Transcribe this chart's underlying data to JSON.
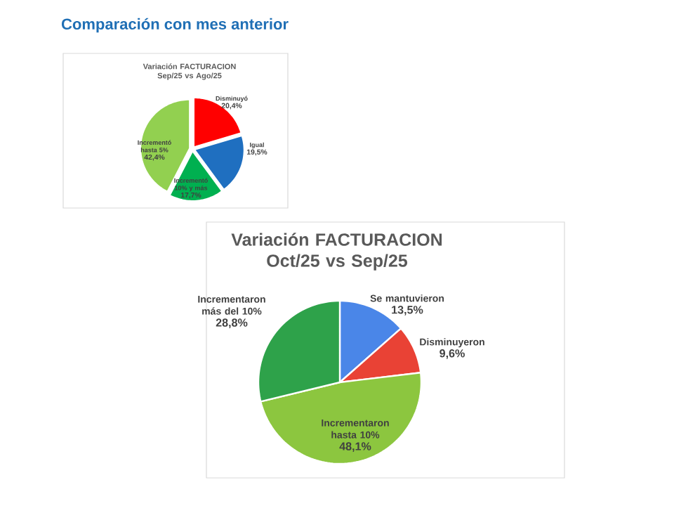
{
  "chart_data": [
    {
      "type": "pie",
      "title": "Comparación con mes anterior",
      "subtitle": "Variación FACTURACION  Sep/25 vs Ago/25",
      "categories": [
        "Disminuyó",
        "Igual",
        "Incrementó 10% y más",
        "Incrementó hasta 5%"
      ],
      "values": [
        20.4,
        19.5,
        17.7,
        42.4
      ],
      "value_labels": [
        "20,4%",
        "19,5%",
        "17,7%",
        "42,4%"
      ],
      "colors": [
        "#ff0000",
        "#1f6fc0",
        "#00b050",
        "#92d050"
      ]
    },
    {
      "type": "pie",
      "title": "Variación FACTURACION  Oct/25 vs Sep/25",
      "categories": [
        "Se mantuvieron",
        "Disminuyeron",
        "Incrementaron hasta 10%",
        "Incrementaron más del 10%"
      ],
      "values": [
        13.5,
        9.6,
        48.1,
        28.8
      ],
      "value_labels": [
        "13,5%",
        "9,6%",
        "48,1%",
        "28,8%"
      ],
      "colors": [
        "#4a86e8",
        "#e94235",
        "#8cc63f",
        "#2ea24a"
      ]
    }
  ]
}
